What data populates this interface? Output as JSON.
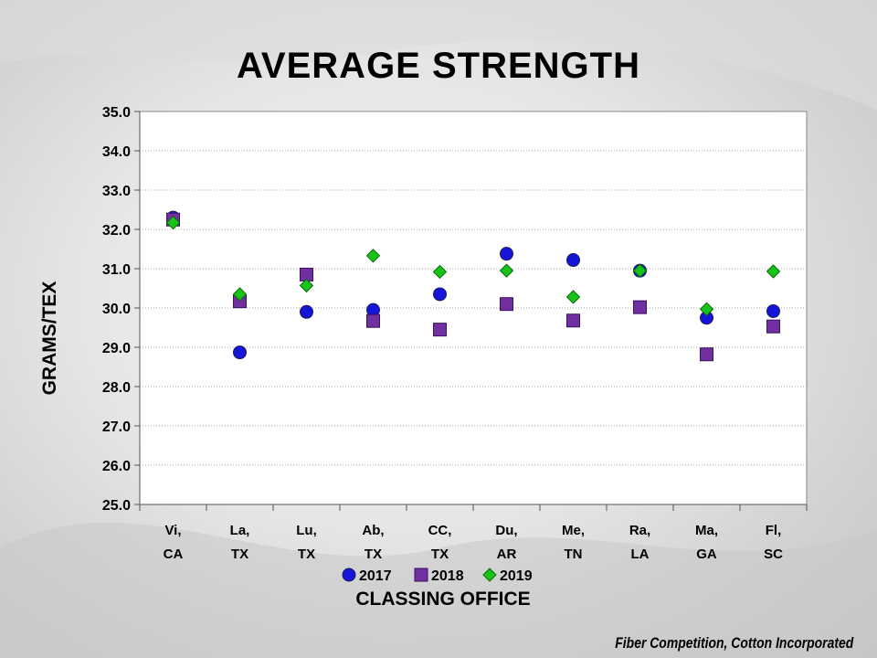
{
  "slide": {
    "title": "AVERAGE STRENGTH",
    "source": "Fiber Competition, Cotton Incorporated"
  },
  "colors": {
    "2017": "#1515d8",
    "2018": "#7030a0",
    "2019": "#16c316",
    "grid": "#a8a8a8",
    "plot_bg": "#ffffff"
  },
  "chart_data": {
    "type": "scatter",
    "title": "AVERAGE STRENGTH",
    "xlabel": "CLASSING OFFICE",
    "ylabel": "GRAMS/TEX",
    "ylim": [
      25.0,
      35.0
    ],
    "ytick_step": 1.0,
    "grid": true,
    "legend_position": "bottom",
    "categories": [
      [
        "Vi,",
        "CA"
      ],
      [
        "La,",
        "TX"
      ],
      [
        "Lu,",
        "TX"
      ],
      [
        "Ab,",
        "TX"
      ],
      [
        "CC,",
        "TX"
      ],
      [
        "Du,",
        "AR"
      ],
      [
        "Me,",
        "TN"
      ],
      [
        "Ra,",
        "LA"
      ],
      [
        "Ma,",
        "GA"
      ],
      [
        "Fl,",
        "SC"
      ]
    ],
    "series": [
      {
        "name": "2017",
        "marker": "circle",
        "values": [
          32.3,
          28.87,
          29.9,
          29.95,
          30.35,
          31.38,
          31.22,
          30.95,
          29.75,
          29.92
        ]
      },
      {
        "name": "2018",
        "marker": "square",
        "values": [
          32.25,
          30.17,
          30.85,
          29.67,
          29.45,
          30.1,
          29.68,
          30.02,
          28.82,
          29.53
        ]
      },
      {
        "name": "2019",
        "marker": "diamond",
        "values": [
          32.17,
          30.35,
          30.57,
          31.33,
          30.92,
          30.95,
          30.28,
          30.95,
          29.97,
          30.93
        ]
      }
    ]
  }
}
